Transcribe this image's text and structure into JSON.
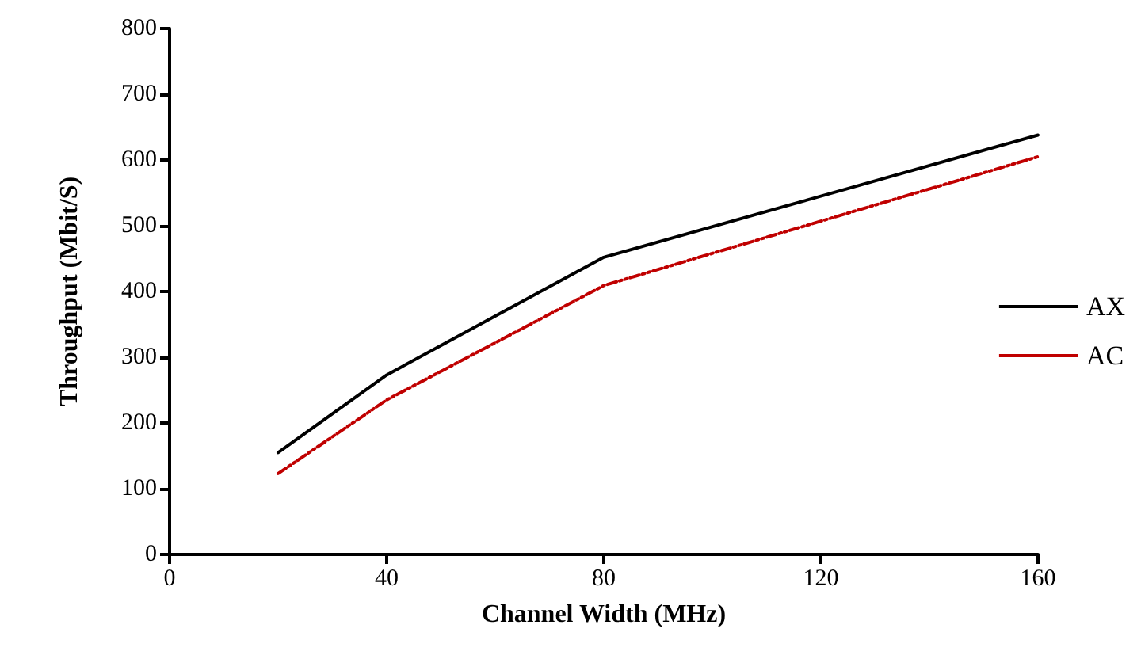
{
  "chart_data": {
    "type": "line",
    "xlabel": "Channel Width (MHz)",
    "ylabel": "Throughput (Mbit/S)",
    "x": [
      20,
      40,
      80,
      160
    ],
    "series": [
      {
        "name": "AX",
        "color": "#000000",
        "values": [
          155,
          273,
          452,
          638
        ],
        "line_style": "solid"
      },
      {
        "name": "AC",
        "color": "#c00000",
        "values": [
          123,
          235,
          409,
          605
        ],
        "line_style": "dashed"
      }
    ],
    "xlim": [
      0,
      160
    ],
    "xticks": [
      0,
      40,
      80,
      120,
      160
    ],
    "ylim": [
      0,
      800
    ],
    "yticks": [
      0,
      100,
      200,
      300,
      400,
      500,
      600,
      700,
      800
    ],
    "grid": false,
    "legend": "right",
    "marker": "none"
  }
}
